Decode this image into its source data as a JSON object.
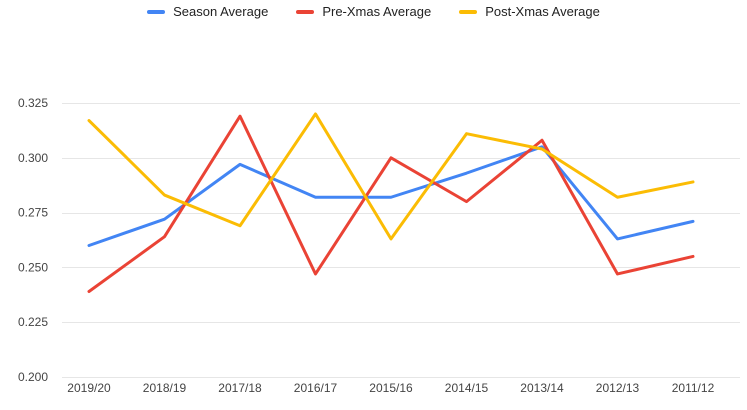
{
  "chart_data": {
    "type": "line",
    "title": "",
    "xlabel": "",
    "ylabel": "",
    "grid": true,
    "legend_position": "top-center",
    "categories": [
      "2019/20",
      "2018/19",
      "2017/18",
      "2016/17",
      "2015/16",
      "2014/15",
      "2013/14",
      "2012/13",
      "2011/12"
    ],
    "series": [
      {
        "name": "Season Average",
        "color": "#4285F4",
        "values": [
          0.26,
          0.272,
          0.297,
          0.282,
          0.282,
          0.293,
          0.305,
          0.263,
          0.271
        ]
      },
      {
        "name": "Pre-Xmas Average",
        "color": "#EA4335",
        "values": [
          0.239,
          0.264,
          0.319,
          0.247,
          0.3,
          0.28,
          0.308,
          0.247,
          0.255
        ]
      },
      {
        "name": "Post-Xmas Average",
        "color": "#FBBC04",
        "values": [
          0.317,
          0.283,
          0.269,
          0.32,
          0.263,
          0.311,
          0.304,
          0.282,
          0.289
        ]
      }
    ],
    "ylim": [
      0.2,
      0.325
    ],
    "yticks": [
      {
        "value": 0.2,
        "label": "0.200"
      },
      {
        "value": 0.225,
        "label": "0.225"
      },
      {
        "value": 0.25,
        "label": "0.250"
      },
      {
        "value": 0.275,
        "label": "0.275"
      },
      {
        "value": 0.3,
        "label": "0.300"
      },
      {
        "value": 0.325,
        "label": "0.325"
      }
    ],
    "gridline_color": "#e6e6e6",
    "axis_label_color": "#444444",
    "legend_text_color": "#222222",
    "background_color": "#ffffff"
  }
}
